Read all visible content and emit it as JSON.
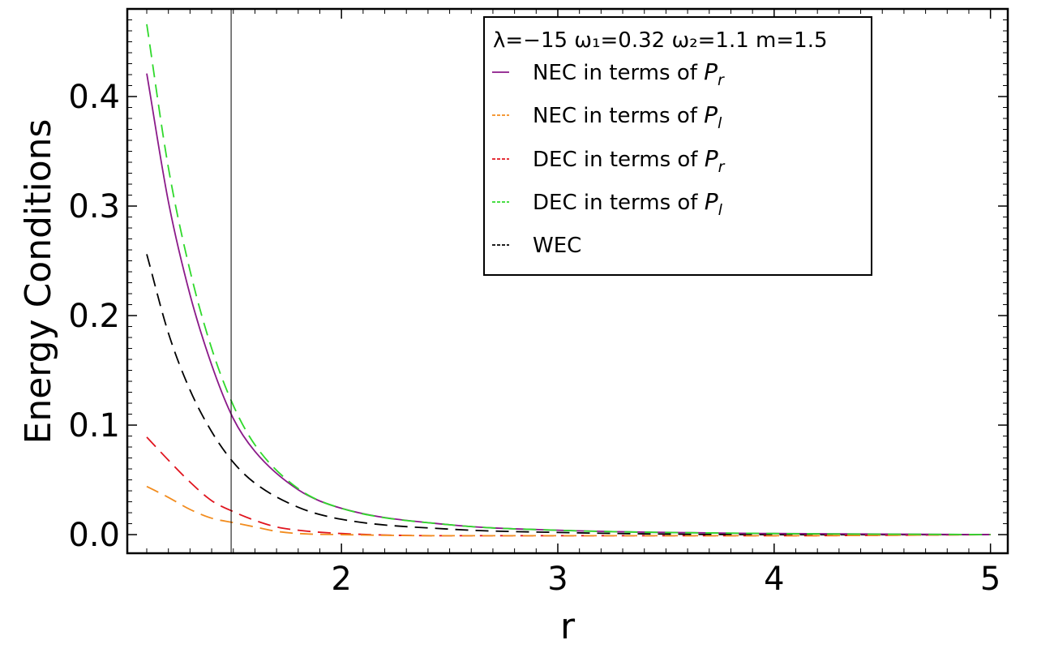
{
  "chart_data": {
    "type": "line",
    "xlabel": "r",
    "ylabel": "Energy Conditions",
    "xlim": [
      1.01,
      5.08
    ],
    "ylim": [
      -0.017,
      0.48
    ],
    "xticks": [
      2,
      3,
      4,
      5
    ],
    "yticks": [
      0.0,
      0.1,
      0.2,
      0.3,
      0.4
    ],
    "xtick_labels": [
      "2",
      "3",
      "4",
      "5"
    ],
    "ytick_labels": [
      "0.0",
      "0.1",
      "0.2",
      "0.3",
      "0.4"
    ],
    "vline_x": 1.49,
    "grid": false,
    "legend_position": "top-right",
    "legend_title": "λ=−15 ω₁=0.32 ω₂=1.1 m=1.5",
    "series": [
      {
        "name": "NEC in terms of P_r",
        "legend_main": "NEC in terms of ",
        "legend_sym": "P",
        "legend_sub": "r",
        "color": "#8b1a89",
        "dash": "solid",
        "x": [
          1.1,
          1.2,
          1.3,
          1.4,
          1.5,
          1.6,
          1.8,
          2.0,
          2.5,
          3.0,
          4.0,
          5.0
        ],
        "y": [
          0.421,
          0.304,
          0.219,
          0.155,
          0.106,
          0.076,
          0.041,
          0.024,
          0.009,
          0.004,
          0.001,
          0.0
        ]
      },
      {
        "name": "NEC in terms of P_l",
        "legend_main": "NEC in terms of ",
        "legend_sym": "P",
        "legend_sub": "l",
        "color": "#f28c1e",
        "dash": "dashed",
        "x": [
          1.1,
          1.2,
          1.3,
          1.4,
          1.5,
          1.6,
          1.7,
          1.8,
          2.0,
          2.5,
          3.0,
          4.0,
          5.0
        ],
        "y": [
          0.044,
          0.034,
          0.023,
          0.015,
          0.011,
          0.007,
          0.003,
          0.001,
          0.0,
          -0.001,
          -0.001,
          -0.001,
          0.0
        ]
      },
      {
        "name": "DEC in terms of P_r",
        "legend_main": "DEC in terms of ",
        "legend_sym": "P",
        "legend_sub": "r",
        "color": "#e0141e",
        "dash": "dashed",
        "x": [
          1.1,
          1.2,
          1.3,
          1.4,
          1.5,
          1.6,
          1.7,
          1.8,
          2.0,
          2.5,
          3.0,
          4.0,
          5.0
        ],
        "y": [
          0.089,
          0.068,
          0.048,
          0.031,
          0.021,
          0.013,
          0.007,
          0.004,
          0.001,
          -0.001,
          -0.001,
          -0.001,
          0.0
        ]
      },
      {
        "name": "DEC in terms of P_l",
        "legend_main": "DEC in terms of ",
        "legend_sym": "P",
        "legend_sub": "l",
        "color": "#2fd92b",
        "dash": "dashed",
        "x": [
          1.1,
          1.2,
          1.3,
          1.4,
          1.5,
          1.6,
          1.8,
          2.0,
          2.5,
          3.0,
          4.0,
          5.0
        ],
        "y": [
          0.466,
          0.335,
          0.241,
          0.17,
          0.118,
          0.082,
          0.042,
          0.024,
          0.009,
          0.004,
          0.001,
          0.0
        ]
      },
      {
        "name": "WEC",
        "legend_main": "WEC",
        "legend_sym": "",
        "legend_sub": "",
        "color": "#000000",
        "dash": "dashed",
        "x": [
          1.1,
          1.2,
          1.3,
          1.4,
          1.5,
          1.6,
          1.8,
          2.0,
          2.5,
          3.0,
          4.0,
          5.0
        ],
        "y": [
          0.256,
          0.184,
          0.132,
          0.094,
          0.066,
          0.047,
          0.025,
          0.014,
          0.005,
          0.002,
          0.0,
          0.0
        ]
      }
    ]
  }
}
